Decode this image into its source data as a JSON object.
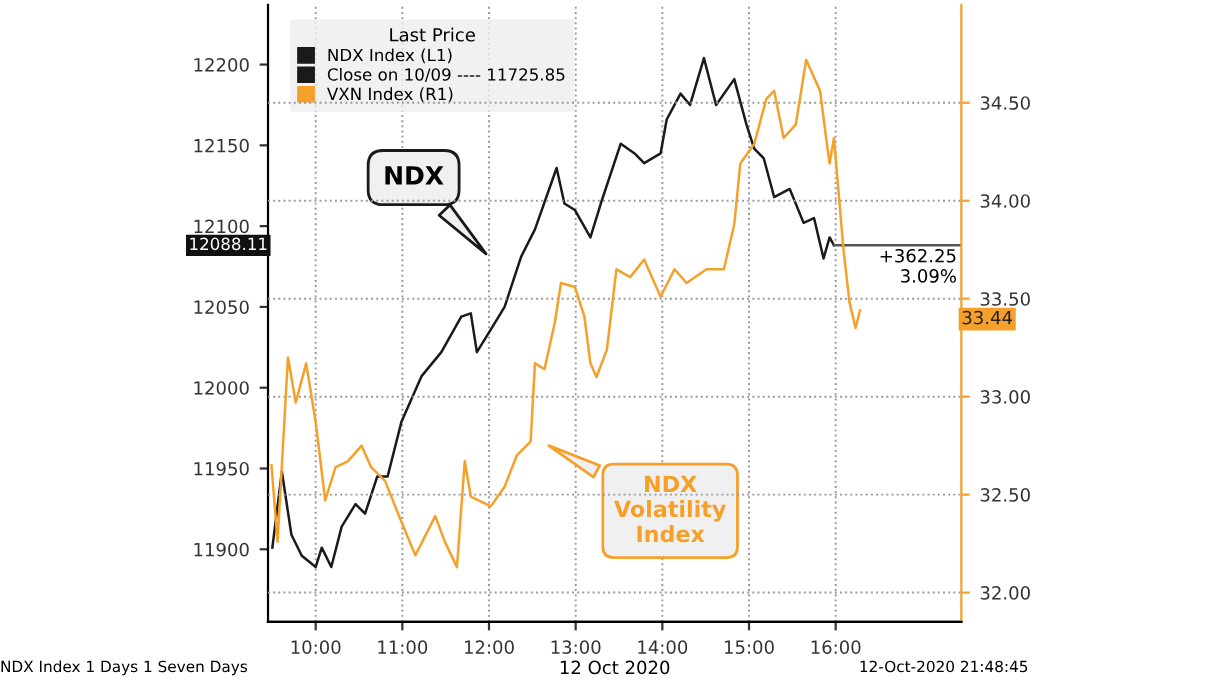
{
  "chart_data": {
    "type": "line",
    "xlabel": "12 Oct 2020",
    "legend_title": "Last Price",
    "legend": "top left",
    "grid": true,
    "xlim": [
      9.45,
      17.45
    ],
    "xticks": [
      {
        "value": 10,
        "label": "10:00"
      },
      {
        "value": 11,
        "label": "11:00"
      },
      {
        "value": 12,
        "label": "12:00"
      },
      {
        "value": 13,
        "label": "13:00"
      },
      {
        "value": 14,
        "label": "14:00"
      },
      {
        "value": 15,
        "label": "15:00"
      },
      {
        "value": 16,
        "label": "16:00"
      }
    ],
    "ylim": [
      11855,
      12237
    ],
    "yticks": [
      11900,
      11950,
      12000,
      12050,
      12100,
      12150,
      12200
    ],
    "y2lim": [
      31.85,
      35.0
    ],
    "y2ticks": [
      {
        "value": 32,
        "label": "32.00"
      },
      {
        "value": 32.5,
        "label": "32.50"
      },
      {
        "value": 33,
        "label": "33.00"
      },
      {
        "value": 33.5,
        "label": "33.50"
      },
      {
        "value": 34,
        "label": "34.00"
      },
      {
        "value": 34.5,
        "label": "34.50"
      }
    ],
    "series": [
      {
        "name": "NDX Index (L1)",
        "color": "#1a1a1a",
        "x": [
          9.5,
          9.61,
          9.72,
          9.84,
          10.0,
          10.07,
          10.18,
          10.3,
          10.46,
          10.57,
          10.71,
          10.83,
          10.99,
          11.22,
          11.45,
          11.68,
          11.79,
          11.86,
          12.02,
          12.18,
          12.37,
          12.53,
          12.78,
          12.87,
          12.99,
          13.17,
          13.29,
          13.52,
          13.68,
          13.79,
          13.98,
          14.05,
          14.21,
          14.32,
          14.48,
          14.62,
          14.83,
          14.97,
          15.06,
          15.17,
          15.29,
          15.47,
          15.63,
          15.75,
          15.86,
          15.93,
          15.98
        ],
        "values": [
          11901,
          11948,
          11909,
          11896,
          11889,
          11901,
          11889,
          11914,
          11928,
          11922,
          11945,
          11945,
          11979,
          12007,
          12022,
          12044,
          12046,
          12022,
          12036,
          12050,
          12081,
          12098,
          12136,
          12114,
          12110,
          12093,
          12114,
          12151,
          12145,
          12139,
          12145,
          12166,
          12182,
          12175,
          12204,
          12175,
          12191,
          12163,
          12148,
          12142,
          12118,
          12123,
          12102,
          12105,
          12080,
          12093,
          12088.11
        ]
      },
      {
        "name": "VXN Index (R1)",
        "color": "#f5a02a",
        "axis": "y2",
        "x": [
          9.49,
          9.56,
          9.68,
          9.77,
          9.89,
          10.0,
          10.11,
          10.23,
          10.37,
          10.53,
          10.64,
          10.8,
          10.99,
          11.15,
          11.38,
          11.49,
          11.63,
          11.72,
          11.79,
          12.02,
          12.18,
          12.32,
          12.48,
          12.53,
          12.64,
          12.76,
          12.83,
          12.99,
          13.1,
          13.17,
          13.24,
          13.36,
          13.47,
          13.63,
          13.79,
          13.98,
          14.14,
          14.28,
          14.51,
          14.71,
          14.83,
          14.9,
          15.06,
          15.2,
          15.29,
          15.4,
          15.54,
          15.66,
          15.82,
          15.89,
          15.93,
          15.98,
          16.09,
          16.16,
          16.23,
          16.28
        ],
        "values": [
          32.65,
          32.26,
          33.2,
          32.97,
          33.17,
          32.87,
          32.47,
          32.64,
          32.67,
          32.75,
          32.64,
          32.57,
          32.36,
          32.19,
          32.39,
          32.26,
          32.13,
          32.67,
          32.49,
          32.44,
          32.54,
          32.7,
          32.77,
          33.17,
          33.14,
          33.38,
          33.58,
          33.56,
          33.41,
          33.17,
          33.1,
          33.24,
          33.65,
          33.61,
          33.7,
          33.51,
          33.65,
          33.58,
          33.65,
          33.65,
          33.88,
          34.19,
          34.29,
          34.52,
          34.56,
          34.32,
          34.39,
          34.72,
          34.56,
          34.32,
          34.19,
          34.32,
          33.75,
          33.48,
          33.35,
          33.44
        ]
      }
    ],
    "annotations": [
      "NDX",
      "NDX\nVolatility\nIndex",
      {
        "text": "+362.25\n3.09%",
        "x": 15.98,
        "y": 12088.11
      },
      "12088.11",
      "33.44",
      "NDX Index 1 Days 1 Seven Days",
      "12-Oct-2020 21:48:45",
      "Close on 10/09 ---- 11725.85"
    ]
  }
}
